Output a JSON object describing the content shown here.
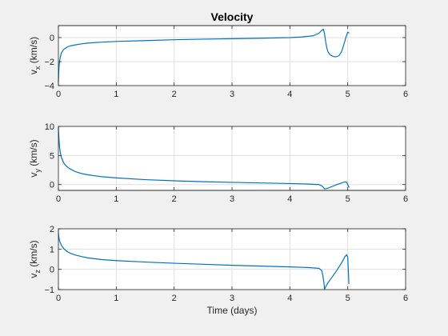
{
  "chart_data": [
    {
      "type": "line",
      "title": "Velocity",
      "ylabel_main": "v",
      "ylabel_sub": "x",
      "ylabel_unit": " (km/s)",
      "xlabel": "",
      "xlim": [
        0,
        6
      ],
      "ylim": [
        -4,
        1
      ],
      "xticks": [
        0,
        1,
        2,
        3,
        4,
        5,
        6
      ],
      "yticks": [
        -4,
        -2,
        0
      ],
      "grid": true,
      "color": "#0072bd",
      "x": [
        0,
        0.005,
        0.01,
        0.02,
        0.03,
        0.05,
        0.08,
        0.1,
        0.15,
        0.2,
        0.3,
        0.4,
        0.5,
        0.75,
        1,
        1.5,
        2,
        2.5,
        3,
        3.5,
        4,
        4.2,
        4.4,
        4.5,
        4.55,
        4.58,
        4.6,
        4.62,
        4.64,
        4.66,
        4.7,
        4.75,
        4.8,
        4.85,
        4.9,
        4.95,
        4.98,
        5.0,
        5.02
      ],
      "y": [
        -3.7,
        -3.0,
        -2.5,
        -2.0,
        -1.7,
        -1.3,
        -1.05,
        -0.95,
        -0.8,
        -0.7,
        -0.6,
        -0.52,
        -0.46,
        -0.38,
        -0.32,
        -0.25,
        -0.18,
        -0.13,
        -0.09,
        -0.05,
        0.0,
        0.05,
        0.15,
        0.35,
        0.6,
        0.7,
        0.3,
        -0.4,
        -0.9,
        -1.2,
        -1.45,
        -1.58,
        -1.6,
        -1.5,
        -1.1,
        -0.3,
        0.2,
        0.45,
        0.4
      ]
    },
    {
      "type": "line",
      "title": "",
      "ylabel_main": "v",
      "ylabel_sub": "y",
      "ylabel_unit": " (km/s)",
      "xlabel": "",
      "xlim": [
        0,
        6
      ],
      "ylim": [
        -1,
        10
      ],
      "xticks": [
        0,
        1,
        2,
        3,
        4,
        5,
        6
      ],
      "yticks": [
        0,
        5,
        10
      ],
      "grid": true,
      "color": "#0072bd",
      "x": [
        0,
        0.005,
        0.01,
        0.02,
        0.03,
        0.05,
        0.08,
        0.1,
        0.15,
        0.2,
        0.3,
        0.4,
        0.5,
        0.75,
        1,
        1.5,
        2,
        2.5,
        3,
        3.5,
        4,
        4.3,
        4.5,
        4.55,
        4.58,
        4.6,
        4.65,
        4.7,
        4.8,
        4.9,
        4.95,
        4.98,
        5.0,
        5.02
      ],
      "y": [
        9.8,
        8.7,
        7.8,
        6.5,
        5.7,
        4.7,
        4.0,
        3.6,
        3.05,
        2.7,
        2.2,
        1.9,
        1.7,
        1.35,
        1.15,
        0.85,
        0.65,
        0.5,
        0.38,
        0.28,
        0.18,
        0.1,
        0.0,
        -0.2,
        -0.5,
        -0.75,
        -0.65,
        -0.45,
        -0.05,
        0.3,
        0.45,
        0.4,
        0.0,
        -0.45
      ]
    },
    {
      "type": "line",
      "title": "",
      "ylabel_main": "v",
      "ylabel_sub": "z",
      "ylabel_unit": " (km/s)",
      "xlabel": "Time (days)",
      "xlim": [
        0,
        6
      ],
      "ylim": [
        -1,
        2
      ],
      "xticks": [
        0,
        1,
        2,
        3,
        4,
        5,
        6
      ],
      "yticks": [
        -1,
        0,
        1,
        2
      ],
      "grid": true,
      "color": "#0072bd",
      "x": [
        0,
        0.005,
        0.01,
        0.02,
        0.03,
        0.05,
        0.08,
        0.1,
        0.15,
        0.2,
        0.3,
        0.4,
        0.5,
        0.75,
        1,
        1.5,
        2,
        2.5,
        3,
        3.5,
        4,
        4.3,
        4.5,
        4.55,
        4.57,
        4.59,
        4.6,
        4.62,
        4.65,
        4.7,
        4.8,
        4.9,
        4.95,
        4.98,
        5.0,
        5.02
      ],
      "y": [
        1.8,
        1.65,
        1.55,
        1.42,
        1.33,
        1.2,
        1.07,
        1.0,
        0.88,
        0.8,
        0.7,
        0.63,
        0.57,
        0.48,
        0.43,
        0.36,
        0.3,
        0.25,
        0.2,
        0.16,
        0.12,
        0.09,
        0.05,
        -0.05,
        -0.3,
        -0.7,
        -0.98,
        -0.85,
        -0.7,
        -0.5,
        -0.1,
        0.35,
        0.62,
        0.72,
        0.6,
        -0.7
      ]
    }
  ]
}
